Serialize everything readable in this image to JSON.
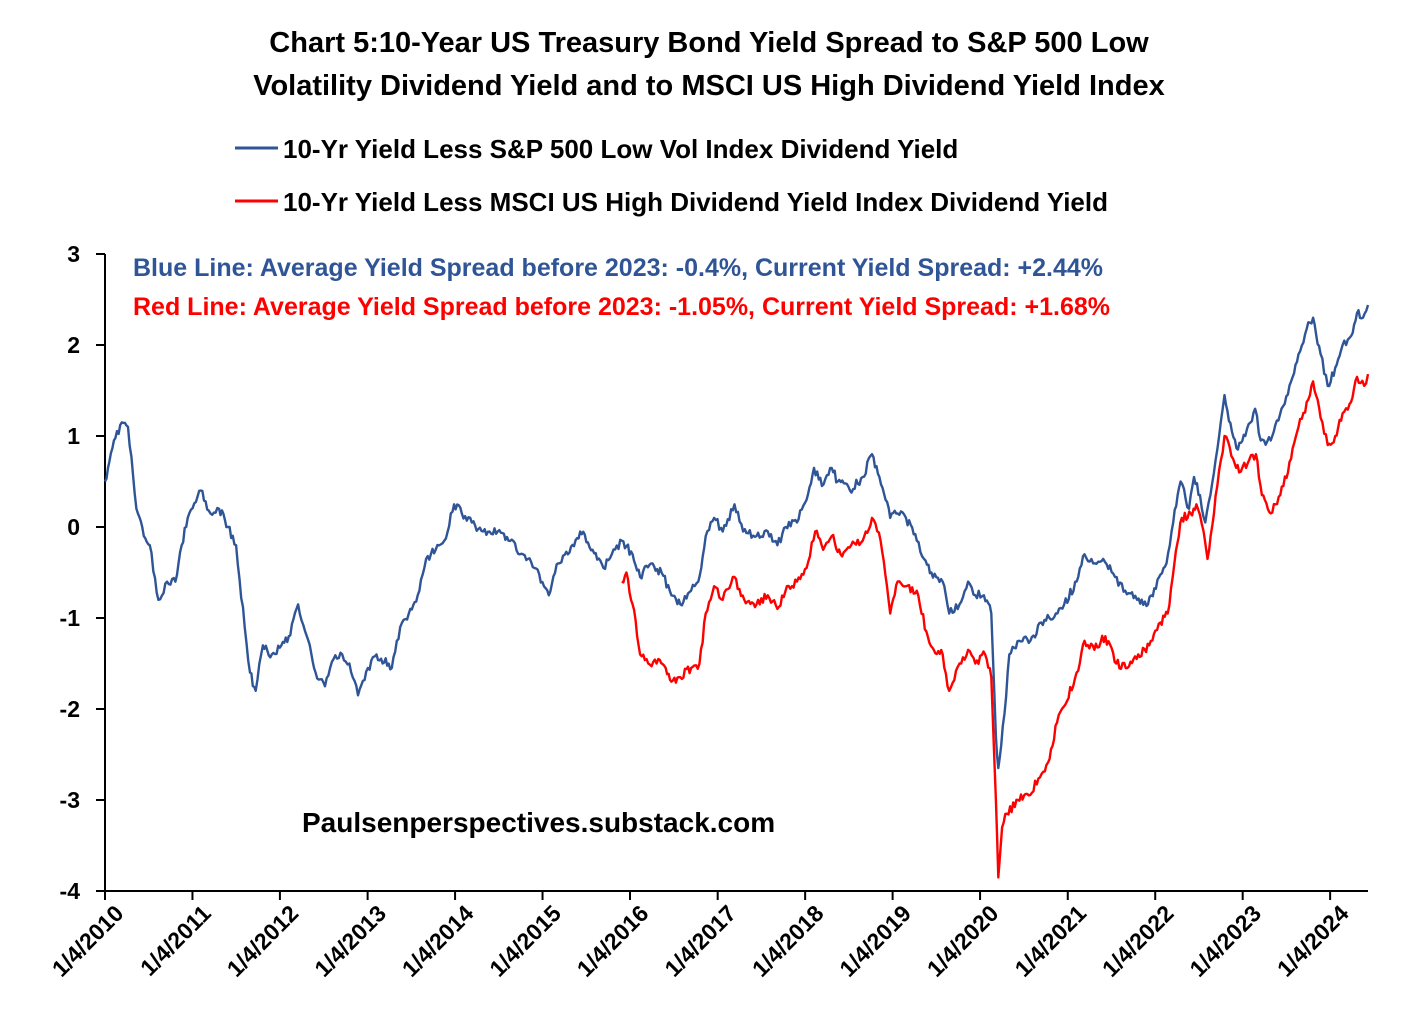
{
  "chart_data": {
    "type": "line",
    "title_lines": [
      "Chart 5:10-Year US Treasury Bond Yield Spread to S&P 500 Low",
      "Volatility Dividend Yield and to MSCI US High Dividend Yield Index"
    ],
    "xlabel": "",
    "ylabel": "",
    "ylim": [
      -4,
      3
    ],
    "yticks": [
      "3",
      "2",
      "1",
      "0",
      "-1",
      "-2",
      "-3",
      "-4"
    ],
    "xlim": [
      "2010-01-04",
      "2024-06-10"
    ],
    "xticks": [
      "1/4/2010",
      "1/4/2011",
      "1/4/2012",
      "1/4/2013",
      "1/4/2014",
      "1/4/2015",
      "1/4/2016",
      "1/4/2017",
      "1/4/2018",
      "1/4/2019",
      "1/4/2020",
      "1/4/2021",
      "1/4/2022",
      "1/4/2023",
      "1/4/2024"
    ],
    "grid": false,
    "legend_position": "top",
    "annotations": {
      "blue": "Blue Line:  Average Yield Spread before 2023: -0.4%,  Current Yield Spread:  +2.44%",
      "red": "Red Line:   Average Yield Spread before 2023: -1.05%,  Current Yield Spread: +1.68%",
      "source": "Paulsenperspectives.substack.com"
    },
    "series": [
      {
        "name": "10-Yr Yield Less S&P 500 Low Vol Index Dividend Yield",
        "color": "#2f5597",
        "points": [
          [
            "2010-01-04",
            0.5
          ],
          [
            "2010-02-10",
            0.95
          ],
          [
            "2010-03-15",
            1.15
          ],
          [
            "2010-04-10",
            1.1
          ],
          [
            "2010-05-15",
            0.2
          ],
          [
            "2010-06-15",
            -0.1
          ],
          [
            "2010-07-10",
            -0.2
          ],
          [
            "2010-08-15",
            -0.8
          ],
          [
            "2010-09-20",
            -0.6
          ],
          [
            "2010-10-25",
            -0.6
          ],
          [
            "2010-11-20",
            -0.2
          ],
          [
            "2010-12-15",
            0.1
          ],
          [
            "2011-02-08",
            0.4
          ],
          [
            "2011-03-20",
            0.15
          ],
          [
            "2011-04-25",
            0.2
          ],
          [
            "2011-06-01",
            0.0
          ],
          [
            "2011-07-05",
            -0.2
          ],
          [
            "2011-08-10",
            -1.1
          ],
          [
            "2011-09-01",
            -1.6
          ],
          [
            "2011-09-25",
            -1.8
          ],
          [
            "2011-10-25",
            -1.3
          ],
          [
            "2011-12-01",
            -1.4
          ],
          [
            "2012-01-10",
            -1.3
          ],
          [
            "2012-02-10",
            -1.2
          ],
          [
            "2012-03-20",
            -0.85
          ],
          [
            "2012-04-25",
            -1.2
          ],
          [
            "2012-06-01",
            -1.6
          ],
          [
            "2012-07-10",
            -1.75
          ],
          [
            "2012-08-15",
            -1.45
          ],
          [
            "2012-09-20",
            -1.4
          ],
          [
            "2012-10-20",
            -1.5
          ],
          [
            "2012-11-25",
            -1.85
          ],
          [
            "2013-01-05",
            -1.55
          ],
          [
            "2013-02-10",
            -1.4
          ],
          [
            "2013-04-15",
            -1.55
          ],
          [
            "2013-05-20",
            -1.1
          ],
          [
            "2013-06-25",
            -0.95
          ],
          [
            "2013-08-01",
            -0.75
          ],
          [
            "2013-09-05",
            -0.35
          ],
          [
            "2013-10-15",
            -0.25
          ],
          [
            "2013-11-20",
            -0.15
          ],
          [
            "2013-12-31",
            0.25
          ],
          [
            "2014-02-01",
            0.15
          ],
          [
            "2014-03-15",
            0.05
          ],
          [
            "2014-05-01",
            -0.05
          ],
          [
            "2014-07-01",
            -0.05
          ],
          [
            "2014-08-15",
            -0.15
          ],
          [
            "2014-10-15",
            -0.3
          ],
          [
            "2014-12-01",
            -0.45
          ],
          [
            "2015-01-30",
            -0.75
          ],
          [
            "2015-03-10",
            -0.4
          ],
          [
            "2015-04-20",
            -0.3
          ],
          [
            "2015-06-10",
            -0.05
          ],
          [
            "2015-08-01",
            -0.25
          ],
          [
            "2015-09-15",
            -0.45
          ],
          [
            "2015-10-20",
            -0.3
          ],
          [
            "2015-12-01",
            -0.15
          ],
          [
            "2016-01-15",
            -0.3
          ],
          [
            "2016-02-15",
            -0.55
          ],
          [
            "2016-04-01",
            -0.4
          ],
          [
            "2016-05-15",
            -0.5
          ],
          [
            "2016-06-25",
            -0.75
          ],
          [
            "2016-08-01",
            -0.85
          ],
          [
            "2016-09-15",
            -0.7
          ],
          [
            "2016-10-15",
            -0.6
          ],
          [
            "2016-11-15",
            -0.1
          ],
          [
            "2016-12-20",
            0.1
          ],
          [
            "2017-01-25",
            -0.05
          ],
          [
            "2017-03-15",
            0.25
          ],
          [
            "2017-04-20",
            -0.05
          ],
          [
            "2017-06-15",
            -0.1
          ],
          [
            "2017-08-01",
            -0.05
          ],
          [
            "2017-09-10",
            -0.2
          ],
          [
            "2017-10-15",
            0.0
          ],
          [
            "2017-12-01",
            0.05
          ],
          [
            "2018-01-10",
            0.3
          ],
          [
            "2018-02-10",
            0.65
          ],
          [
            "2018-03-15",
            0.45
          ],
          [
            "2018-04-25",
            0.65
          ],
          [
            "2018-05-20",
            0.5
          ],
          [
            "2018-07-10",
            0.4
          ],
          [
            "2018-09-01",
            0.55
          ],
          [
            "2018-10-10",
            0.8
          ],
          [
            "2018-11-10",
            0.55
          ],
          [
            "2018-12-25",
            0.1
          ],
          [
            "2019-01-25",
            0.15
          ],
          [
            "2019-03-01",
            0.1
          ],
          [
            "2019-04-15",
            -0.15
          ],
          [
            "2019-05-15",
            -0.35
          ],
          [
            "2019-06-15",
            -0.5
          ],
          [
            "2019-08-01",
            -0.6
          ],
          [
            "2019-08-28",
            -0.95
          ],
          [
            "2019-10-10",
            -0.85
          ],
          [
            "2019-11-15",
            -0.6
          ],
          [
            "2019-12-15",
            -0.75
          ],
          [
            "2020-01-20",
            -0.75
          ],
          [
            "2020-02-20",
            -0.95
          ],
          [
            "2020-03-10",
            -2.3
          ],
          [
            "2020-03-20",
            -2.65
          ],
          [
            "2020-04-01",
            -2.4
          ],
          [
            "2020-04-15",
            -2.05
          ],
          [
            "2020-05-05",
            -1.4
          ],
          [
            "2020-06-15",
            -1.25
          ],
          [
            "2020-08-01",
            -1.25
          ],
          [
            "2020-09-15",
            -1.05
          ],
          [
            "2020-11-15",
            -0.95
          ],
          [
            "2020-12-20",
            -0.85
          ],
          [
            "2021-02-10",
            -0.6
          ],
          [
            "2021-03-15",
            -0.3
          ],
          [
            "2021-04-20",
            -0.4
          ],
          [
            "2021-06-01",
            -0.35
          ],
          [
            "2021-07-20",
            -0.55
          ],
          [
            "2021-09-01",
            -0.7
          ],
          [
            "2021-10-20",
            -0.8
          ],
          [
            "2021-12-05",
            -0.85
          ],
          [
            "2022-01-20",
            -0.55
          ],
          [
            "2022-02-20",
            -0.4
          ],
          [
            "2022-03-20",
            0.05
          ],
          [
            "2022-04-20",
            0.5
          ],
          [
            "2022-05-25",
            0.2
          ],
          [
            "2022-06-15",
            0.55
          ],
          [
            "2022-07-10",
            0.35
          ],
          [
            "2022-08-01",
            0.05
          ],
          [
            "2022-09-20",
            0.85
          ],
          [
            "2022-10-20",
            1.45
          ],
          [
            "2022-11-20",
            1.05
          ],
          [
            "2022-12-15",
            0.85
          ],
          [
            "2023-01-15",
            1.0
          ],
          [
            "2023-02-25",
            1.3
          ],
          [
            "2023-03-20",
            0.95
          ],
          [
            "2023-05-01",
            0.95
          ],
          [
            "2023-06-15",
            1.3
          ],
          [
            "2023-07-25",
            1.6
          ],
          [
            "2023-08-25",
            1.9
          ],
          [
            "2023-10-05",
            2.25
          ],
          [
            "2023-10-25",
            2.3
          ],
          [
            "2023-11-25",
            1.9
          ],
          [
            "2023-12-25",
            1.55
          ],
          [
            "2024-01-25",
            1.75
          ],
          [
            "2024-02-25",
            2.0
          ],
          [
            "2024-04-01",
            2.1
          ],
          [
            "2024-04-25",
            2.35
          ],
          [
            "2024-05-20",
            2.3
          ],
          [
            "2024-06-10",
            2.44
          ]
        ]
      },
      {
        "name": "10-Yr Yield Less MSCI US High Dividend Yield Index Dividend Yield",
        "color": "#ff0000",
        "points": [
          [
            "2015-12-01",
            -0.6
          ],
          [
            "2015-12-20",
            -0.5
          ],
          [
            "2016-01-15",
            -0.85
          ],
          [
            "2016-02-15",
            -1.4
          ],
          [
            "2016-03-20",
            -1.5
          ],
          [
            "2016-05-01",
            -1.45
          ],
          [
            "2016-06-01",
            -1.55
          ],
          [
            "2016-06-25",
            -1.7
          ],
          [
            "2016-08-01",
            -1.65
          ],
          [
            "2016-09-15",
            -1.55
          ],
          [
            "2016-10-20",
            -1.5
          ],
          [
            "2016-11-15",
            -0.95
          ],
          [
            "2016-12-20",
            -0.65
          ],
          [
            "2017-01-25",
            -0.8
          ],
          [
            "2017-03-15",
            -0.55
          ],
          [
            "2017-04-25",
            -0.8
          ],
          [
            "2017-06-15",
            -0.85
          ],
          [
            "2017-08-01",
            -0.75
          ],
          [
            "2017-09-10",
            -0.9
          ],
          [
            "2017-10-20",
            -0.65
          ],
          [
            "2017-12-01",
            -0.6
          ],
          [
            "2018-01-10",
            -0.45
          ],
          [
            "2018-02-15",
            -0.05
          ],
          [
            "2018-03-20",
            -0.25
          ],
          [
            "2018-04-25",
            -0.1
          ],
          [
            "2018-06-01",
            -0.3
          ],
          [
            "2018-07-15",
            -0.2
          ],
          [
            "2018-09-01",
            -0.15
          ],
          [
            "2018-10-10",
            0.1
          ],
          [
            "2018-11-15",
            -0.15
          ],
          [
            "2018-12-25",
            -0.95
          ],
          [
            "2019-01-25",
            -0.6
          ],
          [
            "2019-03-01",
            -0.65
          ],
          [
            "2019-04-15",
            -0.7
          ],
          [
            "2019-05-25",
            -1.15
          ],
          [
            "2019-06-25",
            -1.35
          ],
          [
            "2019-08-01",
            -1.4
          ],
          [
            "2019-08-28",
            -1.8
          ],
          [
            "2019-10-10",
            -1.5
          ],
          [
            "2019-11-15",
            -1.35
          ],
          [
            "2019-12-15",
            -1.5
          ],
          [
            "2020-01-25",
            -1.4
          ],
          [
            "2020-02-20",
            -1.65
          ],
          [
            "2020-03-10",
            -3.0
          ],
          [
            "2020-03-20",
            -3.85
          ],
          [
            "2020-04-05",
            -3.3
          ],
          [
            "2020-04-25",
            -3.15
          ],
          [
            "2020-06-10",
            -3.0
          ],
          [
            "2020-07-25",
            -2.95
          ],
          [
            "2020-09-10",
            -2.75
          ],
          [
            "2020-10-20",
            -2.55
          ],
          [
            "2020-11-20",
            -2.15
          ],
          [
            "2020-12-25",
            -1.95
          ],
          [
            "2021-02-10",
            -1.6
          ],
          [
            "2021-03-15",
            -1.25
          ],
          [
            "2021-04-25",
            -1.35
          ],
          [
            "2021-06-10",
            -1.2
          ],
          [
            "2021-07-25",
            -1.5
          ],
          [
            "2021-09-10",
            -1.55
          ],
          [
            "2021-10-25",
            -1.4
          ],
          [
            "2021-12-10",
            -1.3
          ],
          [
            "2022-01-25",
            -1.05
          ],
          [
            "2022-02-25",
            -0.95
          ],
          [
            "2022-03-25",
            -0.4
          ],
          [
            "2022-04-25",
            0.1
          ],
          [
            "2022-06-01",
            0.15
          ],
          [
            "2022-06-25",
            0.25
          ],
          [
            "2022-07-25",
            -0.05
          ],
          [
            "2022-08-10",
            -0.35
          ],
          [
            "2022-09-20",
            0.45
          ],
          [
            "2022-10-20",
            1.0
          ],
          [
            "2022-11-25",
            0.75
          ],
          [
            "2022-12-20",
            0.6
          ],
          [
            "2023-01-25",
            0.7
          ],
          [
            "2023-02-28",
            0.8
          ],
          [
            "2023-03-25",
            0.35
          ],
          [
            "2023-05-01",
            0.15
          ],
          [
            "2023-06-10",
            0.35
          ],
          [
            "2023-07-25",
            0.75
          ],
          [
            "2023-08-25",
            1.1
          ],
          [
            "2023-10-05",
            1.4
          ],
          [
            "2023-10-25",
            1.6
          ],
          [
            "2023-11-25",
            1.2
          ],
          [
            "2023-12-25",
            0.9
          ],
          [
            "2024-01-25",
            1.0
          ],
          [
            "2024-02-25",
            1.25
          ],
          [
            "2024-03-25",
            1.35
          ],
          [
            "2024-04-25",
            1.65
          ],
          [
            "2024-05-25",
            1.55
          ],
          [
            "2024-06-10",
            1.68
          ]
        ]
      }
    ]
  }
}
